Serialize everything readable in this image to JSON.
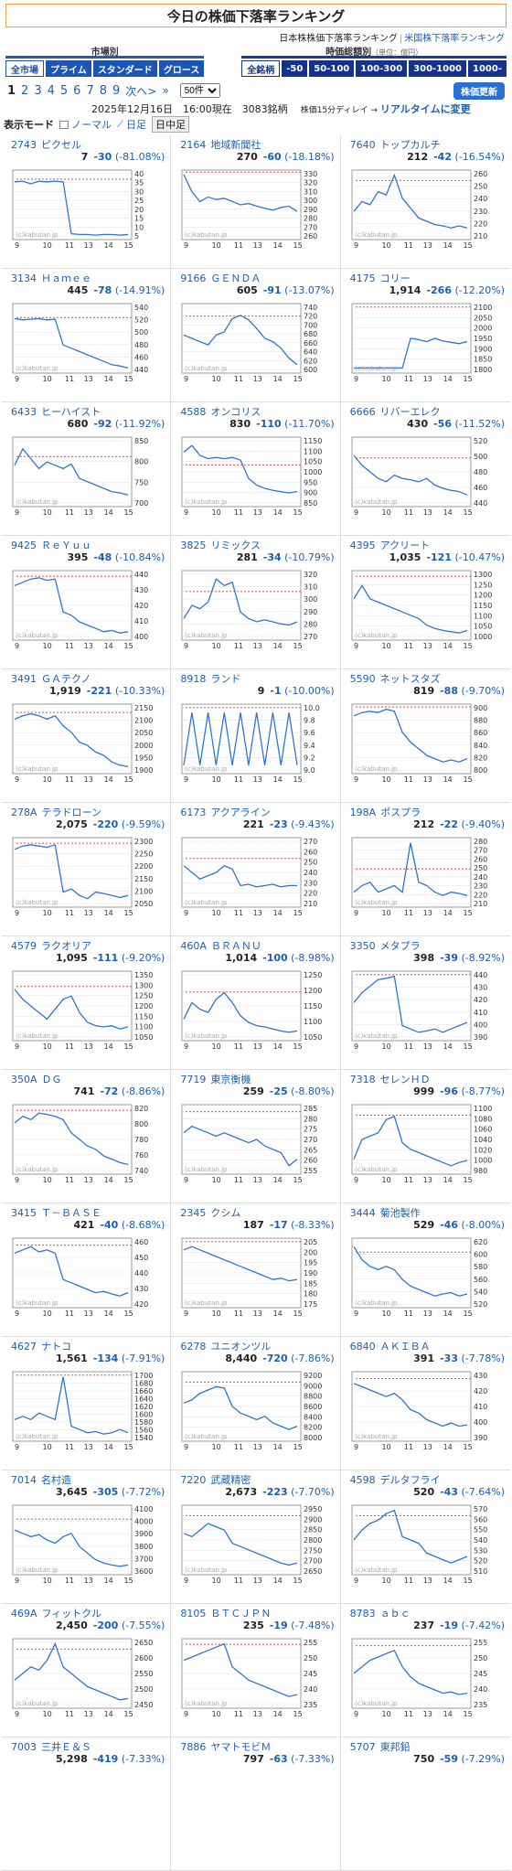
{
  "header": {
    "title": "今日の株価下落率ランキング",
    "link_jp": "日本株株価下落率ランキング",
    "link_us": "米国株下落率ランキング"
  },
  "market_filter": {
    "heading": "市場別",
    "buttons": [
      "全市場",
      "プライム",
      "スタンダード",
      "グロース"
    ],
    "active": 0
  },
  "cap_filter": {
    "heading": "時価総額別",
    "note": "（単位：億円）",
    "buttons": [
      "全銘柄",
      "-50",
      "50-100",
      "100-300",
      "300-1000",
      "1000-"
    ],
    "active": 0
  },
  "pager": {
    "pages": [
      "1",
      "2",
      "3",
      "4",
      "5",
      "6",
      "7",
      "8",
      "9"
    ],
    "current": "1",
    "next": "次へ>",
    "last": "»",
    "per_page": "50件",
    "refresh": "株価更新"
  },
  "info": {
    "date": "2025年12月16日　16:00現在　3083銘柄",
    "delay": "株価15分ディレイ →",
    "realtime": "リアルタイムに変更"
  },
  "modes": {
    "label": "表示モード",
    "normal": "ノーマル",
    "daily": "日足",
    "intraday": "日中足"
  },
  "chart_common": {
    "x_ticks": [
      "9",
      "10",
      "11",
      "13",
      "14",
      "15"
    ],
    "watermark": "(c)kabutan.jp"
  },
  "stocks": [
    {
      "code": "2743",
      "name": "ピクセル",
      "price": "7",
      "change": "-30",
      "pct": "(-81.08%)",
      "yt": [
        "40",
        "35",
        "30",
        "25",
        "20",
        "15",
        "10",
        "5"
      ],
      "prev": 0.87,
      "s": [
        0.85,
        0.86,
        0.82,
        0.86,
        0.85,
        0.86,
        0.85,
        0.06,
        0.05,
        0.05,
        0.04,
        0.05,
        0.05,
        0.04,
        0.05
      ]
    },
    {
      "code": "2164",
      "name": "地域新聞社",
      "price": "270",
      "change": "-60",
      "pct": "(-18.18%)",
      "yt": [
        "330",
        "320",
        "310",
        "300",
        "290",
        "280",
        "270",
        "260"
      ],
      "prev": 0.97,
      "s": [
        0.96,
        0.7,
        0.55,
        0.62,
        0.58,
        0.6,
        0.55,
        0.5,
        0.52,
        0.48,
        0.45,
        0.42,
        0.46,
        0.48,
        0.4
      ]
    },
    {
      "code": "7640",
      "name": "トップカルチ",
      "price": "212",
      "change": "-42",
      "pct": "(-16.54%)",
      "yt": [
        "260",
        "250",
        "240",
        "230",
        "220",
        "210"
      ],
      "prev": 0.85,
      "s": [
        0.4,
        0.55,
        0.5,
        0.7,
        0.65,
        0.95,
        0.6,
        0.45,
        0.3,
        0.25,
        0.2,
        0.18,
        0.15,
        0.18,
        0.15
      ]
    },
    {
      "code": "3134",
      "name": "Ｈａｍｅｅ",
      "price": "445",
      "change": "-78",
      "pct": "(-14.91%)",
      "yt": [
        "540",
        "520",
        "500",
        "480",
        "460",
        "440"
      ],
      "prev": 0.8,
      "s": [
        0.8,
        0.78,
        0.79,
        0.8,
        0.78,
        0.79,
        0.4,
        0.35,
        0.3,
        0.25,
        0.2,
        0.15,
        0.1,
        0.08,
        0.05
      ]
    },
    {
      "code": "9166",
      "name": "ＧＥＮＤＡ",
      "price": "605",
      "change": "-91",
      "pct": "(-13.07%)",
      "yt": [
        "740",
        "720",
        "700",
        "680",
        "660",
        "640",
        "620",
        "600"
      ],
      "prev": 0.82,
      "s": [
        0.55,
        0.5,
        0.45,
        0.4,
        0.55,
        0.6,
        0.8,
        0.85,
        0.78,
        0.65,
        0.5,
        0.45,
        0.35,
        0.2,
        0.1
      ]
    },
    {
      "code": "4175",
      "name": "コリー",
      "price": "1,914",
      "change": "-266",
      "pct": "(-12.20%)",
      "yt": [
        "2100",
        "2050",
        "2000",
        "1950",
        "1900",
        "1850",
        "1800"
      ],
      "prev": 0.95,
      "s": [
        0.05,
        0.05,
        0.05,
        0.05,
        0.05,
        0.05,
        0.05,
        0.5,
        0.48,
        0.45,
        0.5,
        0.46,
        0.44,
        0.42,
        0.45
      ]
    },
    {
      "code": "6433",
      "name": "ヒーハイスト",
      "price": "680",
      "change": "-92",
      "pct": "(-11.92%)",
      "yt": [
        "850",
        "800",
        "750",
        "700"
      ],
      "prev": 0.72,
      "s": [
        0.6,
        0.85,
        0.7,
        0.55,
        0.65,
        0.6,
        0.55,
        0.62,
        0.4,
        0.35,
        0.3,
        0.25,
        0.2,
        0.18,
        0.15
      ]
    },
    {
      "code": "4588",
      "name": "オンコリス",
      "price": "830",
      "change": "-110",
      "pct": "(-11.70%)",
      "yt": [
        "1150",
        "1100",
        "1050",
        "1000",
        "950",
        "900",
        "850"
      ],
      "prev": 0.6,
      "s": [
        0.8,
        0.9,
        0.75,
        0.7,
        0.72,
        0.7,
        0.72,
        0.68,
        0.4,
        0.3,
        0.25,
        0.22,
        0.2,
        0.18,
        0.2
      ]
    },
    {
      "code": "6666",
      "name": "リバーエレク",
      "price": "430",
      "change": "-56",
      "pct": "(-11.52%)",
      "yt": [
        "520",
        "500",
        "480",
        "460",
        "440"
      ],
      "prev": 0.7,
      "s": [
        0.75,
        0.6,
        0.5,
        0.4,
        0.35,
        0.45,
        0.4,
        0.38,
        0.35,
        0.4,
        0.3,
        0.25,
        0.22,
        0.2,
        0.15
      ]
    },
    {
      "code": "9425",
      "name": "ＲｅＹｕｕ",
      "price": "395",
      "change": "-48",
      "pct": "(-10.84%)",
      "yt": [
        "440",
        "430",
        "420",
        "410",
        "400"
      ],
      "prev": 0.92,
      "s": [
        0.8,
        0.85,
        0.9,
        0.92,
        0.88,
        0.9,
        0.4,
        0.35,
        0.25,
        0.2,
        0.15,
        0.1,
        0.12,
        0.08,
        0.1
      ]
    },
    {
      "code": "3825",
      "name": "リミックス",
      "price": "281",
      "change": "-34",
      "pct": "(-10.79%)",
      "yt": [
        "320",
        "310",
        "300",
        "290",
        "280",
        "270"
      ],
      "prev": 0.7,
      "s": [
        0.3,
        0.5,
        0.45,
        0.55,
        0.9,
        0.8,
        0.85,
        0.4,
        0.3,
        0.25,
        0.28,
        0.25,
        0.22,
        0.2,
        0.25
      ]
    },
    {
      "code": "4395",
      "name": "アクリート",
      "price": "1,035",
      "change": "-121",
      "pct": "(-10.47%)",
      "yt": [
        "1300",
        "1250",
        "1200",
        "1150",
        "1100",
        "1050",
        "1000"
      ],
      "prev": 0.92,
      "s": [
        0.6,
        0.8,
        0.6,
        0.55,
        0.5,
        0.45,
        0.4,
        0.35,
        0.3,
        0.2,
        0.15,
        0.12,
        0.1,
        0.08,
        0.12
      ]
    },
    {
      "code": "3491",
      "name": "ＧＡテクノ",
      "price": "1,919",
      "change": "-221",
      "pct": "(-10.33%)",
      "yt": [
        "2150",
        "2100",
        "2050",
        "2000",
        "1950",
        "1900"
      ],
      "prev": 0.88,
      "s": [
        0.8,
        0.85,
        0.88,
        0.85,
        0.8,
        0.85,
        0.7,
        0.6,
        0.45,
        0.4,
        0.3,
        0.25,
        0.15,
        0.1,
        0.08
      ]
    },
    {
      "code": "8918",
      "name": "ランド",
      "price": "9",
      "change": "-1",
      "pct": "(-10.00%)",
      "yt": [
        "10.0",
        "9.8",
        "9.6",
        "9.4",
        "9.2",
        "9.0"
      ],
      "prev": 0.95,
      "s": [
        0.1,
        0.9,
        0.1,
        0.9,
        0.1,
        0.9,
        0.1,
        0.9,
        0.1,
        0.9,
        0.1,
        0.9,
        0.1,
        0.9,
        0.1
      ]
    },
    {
      "code": "5590",
      "name": "ネットスタズ",
      "price": "819",
      "change": "-88",
      "pct": "(-9.70%)",
      "yt": [
        "900",
        "880",
        "860",
        "840",
        "820",
        "800"
      ],
      "prev": 0.96,
      "s": [
        0.85,
        0.9,
        0.92,
        0.9,
        0.95,
        0.92,
        0.6,
        0.45,
        0.35,
        0.25,
        0.2,
        0.15,
        0.18,
        0.15,
        0.2
      ]
    },
    {
      "code": "278A",
      "name": "テラドローン",
      "price": "2,075",
      "change": "-220",
      "pct": "(-9.59%)",
      "yt": [
        "2300",
        "2250",
        "2200",
        "2150",
        "2100",
        "2050"
      ],
      "prev": 0.92,
      "s": [
        0.85,
        0.9,
        0.92,
        0.9,
        0.88,
        0.92,
        0.2,
        0.25,
        0.15,
        0.1,
        0.2,
        0.18,
        0.15,
        0.12,
        0.15
      ]
    },
    {
      "code": "6173",
      "name": "アクアライン",
      "price": "221",
      "change": "-23",
      "pct": "(-9.43%)",
      "yt": [
        "270",
        "260",
        "250",
        "240",
        "230",
        "220",
        "210"
      ],
      "prev": 0.7,
      "s": [
        0.6,
        0.5,
        0.4,
        0.45,
        0.5,
        0.6,
        0.55,
        0.3,
        0.32,
        0.28,
        0.3,
        0.32,
        0.28,
        0.3,
        0.3
      ]
    },
    {
      "code": "198A",
      "name": "ポスプラ",
      "price": "212",
      "change": "-22",
      "pct": "(-9.40%)",
      "yt": [
        "280",
        "270",
        "260",
        "250",
        "240",
        "230",
        "220",
        "210"
      ],
      "prev": 0.55,
      "s": [
        0.2,
        0.3,
        0.35,
        0.2,
        0.25,
        0.3,
        0.2,
        0.95,
        0.35,
        0.3,
        0.2,
        0.15,
        0.2,
        0.18,
        0.15
      ]
    },
    {
      "code": "4579",
      "name": "ラクオリア",
      "price": "1,095",
      "change": "-111",
      "pct": "(-9.20%)",
      "yt": [
        "1350",
        "1300",
        "1250",
        "1200",
        "1150",
        "1100",
        "1050"
      ],
      "prev": 0.78,
      "s": [
        0.75,
        0.6,
        0.5,
        0.4,
        0.3,
        0.45,
        0.6,
        0.65,
        0.4,
        0.25,
        0.2,
        0.18,
        0.2,
        0.15,
        0.18
      ]
    },
    {
      "code": "460A",
      "name": "ＢＲＡＮＵ",
      "price": "1,014",
      "change": "-100",
      "pct": "(-8.98%)",
      "yt": [
        "1250",
        "1200",
        "1150",
        "1100",
        "1050"
      ],
      "prev": 0.7,
      "s": [
        0.3,
        0.55,
        0.45,
        0.4,
        0.6,
        0.7,
        0.55,
        0.35,
        0.25,
        0.2,
        0.18,
        0.15,
        0.12,
        0.1,
        0.12
      ]
    },
    {
      "code": "3350",
      "name": "メタプラ",
      "price": "398",
      "change": "-39",
      "pct": "(-8.92%)",
      "yt": [
        "440",
        "430",
        "420",
        "410",
        "400",
        "390"
      ],
      "prev": 0.95,
      "s": [
        0.55,
        0.7,
        0.8,
        0.9,
        0.92,
        0.95,
        0.2,
        0.15,
        0.1,
        0.12,
        0.15,
        0.1,
        0.15,
        0.2,
        0.25
      ]
    },
    {
      "code": "350A",
      "name": "ＤＧ",
      "price": "741",
      "change": "-72",
      "pct": "(-8.86%)",
      "yt": [
        "820",
        "800",
        "780",
        "760",
        "740"
      ],
      "prev": 0.92,
      "s": [
        0.75,
        0.85,
        0.8,
        0.9,
        0.88,
        0.85,
        0.8,
        0.6,
        0.5,
        0.4,
        0.35,
        0.25,
        0.2,
        0.15,
        0.12
      ]
    },
    {
      "code": "7719",
      "name": "東京衡機",
      "price": "259",
      "change": "-25",
      "pct": "(-8.80%)",
      "yt": [
        "285",
        "280",
        "275",
        "270",
        "265",
        "260",
        "255"
      ],
      "prev": 0.9,
      "s": [
        0.6,
        0.7,
        0.65,
        0.6,
        0.55,
        0.6,
        0.55,
        0.5,
        0.45,
        0.5,
        0.4,
        0.35,
        0.3,
        0.1,
        0.2
      ]
    },
    {
      "code": "7318",
      "name": "セレンＨＤ",
      "price": "999",
      "change": "-96",
      "pct": "(-8.77%)",
      "yt": [
        "1100",
        "1080",
        "1060",
        "1040",
        "1020",
        "1000",
        "980"
      ],
      "prev": 0.85,
      "s": [
        0.2,
        0.5,
        0.55,
        0.6,
        0.8,
        0.85,
        0.45,
        0.35,
        0.3,
        0.25,
        0.2,
        0.15,
        0.1,
        0.15,
        0.18
      ]
    },
    {
      "code": "3415",
      "name": "Ｔ－ＢＡＳＥ",
      "price": "421",
      "change": "-40",
      "pct": "(-8.68%)",
      "yt": [
        "460",
        "450",
        "440",
        "430",
        "420"
      ],
      "prev": 0.9,
      "s": [
        0.8,
        0.85,
        0.9,
        0.82,
        0.85,
        0.8,
        0.4,
        0.35,
        0.3,
        0.25,
        0.2,
        0.22,
        0.18,
        0.15,
        0.2
      ]
    },
    {
      "code": "2345",
      "name": "クシム",
      "price": "187",
      "change": "-17",
      "pct": "(-8.33%)",
      "yt": [
        "205",
        "200",
        "195",
        "190",
        "185",
        "180",
        "175"
      ],
      "prev": 0.95,
      "s": [
        0.85,
        0.9,
        0.85,
        0.8,
        0.75,
        0.7,
        0.65,
        0.6,
        0.55,
        0.5,
        0.45,
        0.4,
        0.42,
        0.38,
        0.4
      ]
    },
    {
      "code": "3444",
      "name": "菊池製作",
      "price": "529",
      "change": "-46",
      "pct": "(-8.00%)",
      "yt": [
        "620",
        "600",
        "580",
        "560",
        "540",
        "520"
      ],
      "prev": 0.8,
      "s": [
        0.9,
        0.7,
        0.6,
        0.55,
        0.6,
        0.55,
        0.4,
        0.3,
        0.25,
        0.2,
        0.15,
        0.18,
        0.2,
        0.15,
        0.18
      ]
    },
    {
      "code": "4627",
      "name": "ナトコ",
      "price": "1,561",
      "change": "-134",
      "pct": "(-7.91%)",
      "yt": [
        "1700",
        "1680",
        "1660",
        "1640",
        "1620",
        "1600",
        "1580",
        "1560",
        "1540"
      ],
      "prev": 0.95,
      "s": [
        0.3,
        0.35,
        0.3,
        0.4,
        0.35,
        0.3,
        0.95,
        0.2,
        0.15,
        0.1,
        0.12,
        0.08,
        0.1,
        0.15,
        0.1
      ]
    },
    {
      "code": "6278",
      "name": "ユニオンツル",
      "price": "8,440",
      "change": "-720",
      "pct": "(-7.86%)",
      "yt": [
        "9200",
        "9000",
        "8800",
        "8600",
        "8400",
        "8200",
        "8000"
      ],
      "prev": 0.85,
      "s": [
        0.55,
        0.6,
        0.7,
        0.75,
        0.8,
        0.78,
        0.5,
        0.4,
        0.35,
        0.3,
        0.35,
        0.25,
        0.2,
        0.15,
        0.2
      ]
    },
    {
      "code": "6840",
      "name": "ＡＫＩＢＡ",
      "price": "391",
      "change": "-33",
      "pct": "(-7.78%)",
      "yt": [
        "430",
        "420",
        "410",
        "400",
        "390"
      ],
      "prev": 0.9,
      "s": [
        0.85,
        0.8,
        0.75,
        0.7,
        0.65,
        0.7,
        0.6,
        0.45,
        0.4,
        0.3,
        0.25,
        0.2,
        0.25,
        0.2,
        0.22
      ]
    },
    {
      "code": "7014",
      "name": "名村造",
      "price": "3,645",
      "change": "-305",
      "pct": "(-7.72%)",
      "yt": [
        "4100",
        "4000",
        "3900",
        "3800",
        "3700",
        "3600"
      ],
      "prev": 0.8,
      "s": [
        0.65,
        0.6,
        0.55,
        0.58,
        0.5,
        0.45,
        0.55,
        0.6,
        0.4,
        0.3,
        0.2,
        0.15,
        0.12,
        0.1,
        0.12
      ]
    },
    {
      "code": "7220",
      "name": "武蔵精密",
      "price": "2,673",
      "change": "-223",
      "pct": "(-7.70%)",
      "yt": [
        "2950",
        "2900",
        "2850",
        "2800",
        "2750",
        "2700",
        "2650"
      ],
      "prev": 0.85,
      "s": [
        0.6,
        0.55,
        0.65,
        0.75,
        0.7,
        0.65,
        0.45,
        0.4,
        0.35,
        0.3,
        0.25,
        0.2,
        0.15,
        0.12,
        0.15
      ]
    },
    {
      "code": "4598",
      "name": "デルタフライ",
      "price": "520",
      "change": "-43",
      "pct": "(-7.64%)",
      "yt": [
        "570",
        "560",
        "550",
        "540",
        "530",
        "520",
        "510"
      ],
      "prev": 0.85,
      "s": [
        0.5,
        0.65,
        0.75,
        0.8,
        0.9,
        0.95,
        0.55,
        0.5,
        0.45,
        0.3,
        0.25,
        0.2,
        0.15,
        0.2,
        0.25
      ]
    },
    {
      "code": "469A",
      "name": "フィットクル",
      "price": "2,450",
      "change": "-200",
      "pct": "(-7.55%)",
      "yt": [
        "2650",
        "2600",
        "2550",
        "2500",
        "2450"
      ],
      "prev": 0.85,
      "s": [
        0.4,
        0.5,
        0.6,
        0.55,
        0.7,
        0.95,
        0.6,
        0.5,
        0.4,
        0.3,
        0.25,
        0.2,
        0.15,
        0.1,
        0.12
      ]
    },
    {
      "code": "8105",
      "name": "ＢＴＣＪＰＮ",
      "price": "235",
      "change": "-19",
      "pct": "(-7.48%)",
      "yt": [
        "255",
        "250",
        "245",
        "240",
        "235"
      ],
      "prev": 0.92,
      "s": [
        0.7,
        0.75,
        0.8,
        0.85,
        0.9,
        0.95,
        0.6,
        0.5,
        0.4,
        0.35,
        0.3,
        0.25,
        0.2,
        0.15,
        0.18
      ]
    },
    {
      "code": "8783",
      "name": "ａｂｃ",
      "price": "237",
      "change": "-19",
      "pct": "(-7.42%)",
      "yt": [
        "255",
        "250",
        "245",
        "240",
        "235"
      ],
      "prev": 0.9,
      "s": [
        0.5,
        0.6,
        0.7,
        0.75,
        0.8,
        0.85,
        0.6,
        0.45,
        0.35,
        0.3,
        0.25,
        0.2,
        0.22,
        0.18,
        0.2
      ]
    },
    {
      "code": "7003",
      "name": "三井Ｅ＆Ｓ",
      "price": "5,298",
      "change": "-419",
      "pct": "(-7.33%)"
    },
    {
      "code": "7886",
      "name": "ヤマトモビＭ",
      "price": "797",
      "change": "-63",
      "pct": "(-7.33%)"
    },
    {
      "code": "5707",
      "name": "東邦鉛",
      "price": "750",
      "change": "-59",
      "pct": "(-7.29%)"
    }
  ]
}
